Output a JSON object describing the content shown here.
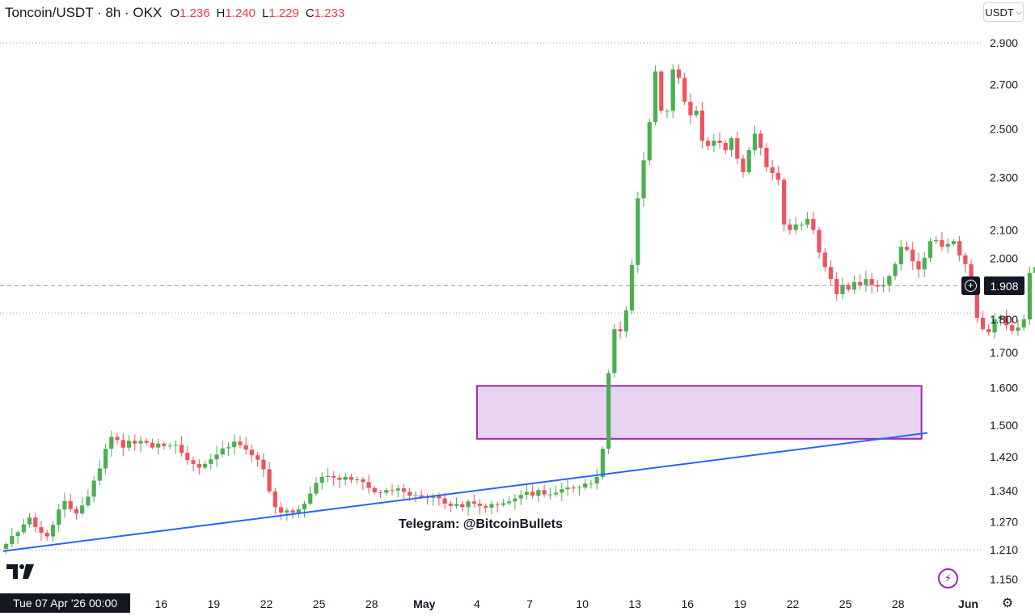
{
  "header": {
    "symbol": "Toncoin/USDT · 8h · OKX",
    "open_label": "O",
    "open": "1.236",
    "high_label": "H",
    "high": "1.240",
    "low_label": "L",
    "low": "1.229",
    "close_label": "C",
    "close": "1.233"
  },
  "currency_selector": {
    "label": "USDT",
    "icon": "chevron-down-icon"
  },
  "crosshair": {
    "date_label": "Tue 07 Apr '26   00:00",
    "price_label": "1.908",
    "price": 1.908
  },
  "watermark": {
    "text": "Telegram: @BitcoinBullets"
  },
  "colors": {
    "up": "#4caf50",
    "down": "#f0525f",
    "trendline": "#2962ff",
    "zone_fill": "#e8d4f0",
    "zone_border": "#9c27b0",
    "background": "#ffffff"
  },
  "icons": {
    "logo": "tradingview-logo-icon",
    "add": "plus-circle-icon",
    "flash": "flash-icon",
    "settings": "gear-icon"
  },
  "chart_data": {
    "type": "candlestick",
    "title": "Toncoin/USDT · 8h · OKX",
    "y_scale": "log",
    "y_ticks": [
      1.15,
      1.21,
      1.27,
      1.34,
      1.42,
      1.5,
      1.6,
      1.7,
      1.8,
      1.908,
      2.0,
      2.1,
      2.3,
      2.5,
      2.7,
      2.9
    ],
    "y_tick_labels": [
      "1.150",
      "1.210",
      "1.270",
      "1.340",
      "1.420",
      "1.500",
      "1.600",
      "1.700",
      "1.800",
      "1.908",
      "2.000",
      "2.100",
      "2.300",
      "2.500",
      "2.700",
      "2.900"
    ],
    "x_tick_labels": [
      "16",
      "19",
      "22",
      "25",
      "28",
      "May",
      "4",
      "7",
      "10",
      "13",
      "16",
      "19",
      "22",
      "25",
      "28",
      "Jun"
    ],
    "x_tick_dates": [
      "2026-04-16",
      "2026-04-19",
      "2026-04-22",
      "2026-04-25",
      "2026-04-28",
      "2026-05-01",
      "2026-05-04",
      "2026-05-07",
      "2026-05-10",
      "2026-05-13",
      "2026-05-16",
      "2026-05-19",
      "2026-05-22",
      "2026-05-25",
      "2026-05-28",
      "2026-06-01"
    ],
    "x_range": [
      "2026-04-07T00:00",
      "2026-06-01T12:00"
    ],
    "horizontal_levels": [
      2.9,
      1.82,
      1.21
    ],
    "demand_zone": {
      "from": "2026-05-04T00:00",
      "to": "2026-05-29T08:00",
      "low": 1.465,
      "high": 1.605
    },
    "trendline": {
      "x1": "2026-04-07T00:00",
      "y1": 1.207,
      "x2": "2026-05-29T16:00",
      "y2": 1.48
    },
    "closes": [
      1.222,
      1.239,
      1.247,
      1.264,
      1.279,
      1.258,
      1.246,
      1.238,
      1.263,
      1.297,
      1.316,
      1.298,
      1.288,
      1.306,
      1.326,
      1.363,
      1.392,
      1.44,
      1.47,
      1.462,
      1.443,
      1.46,
      1.453,
      1.46,
      1.455,
      1.443,
      1.453,
      1.447,
      1.448,
      1.45,
      1.43,
      1.412,
      1.403,
      1.394,
      1.403,
      1.414,
      1.426,
      1.441,
      1.444,
      1.458,
      1.449,
      1.438,
      1.424,
      1.413,
      1.39,
      1.338,
      1.302,
      1.29,
      1.295,
      1.29,
      1.297,
      1.31,
      1.333,
      1.358,
      1.372,
      1.374,
      1.37,
      1.365,
      1.372,
      1.365,
      1.366,
      1.36,
      1.346,
      1.336,
      1.335,
      1.341,
      1.34,
      1.345,
      1.337,
      1.328,
      1.329,
      1.325,
      1.323,
      1.329,
      1.322,
      1.31,
      1.305,
      1.309,
      1.302,
      1.315,
      1.31,
      1.305,
      1.301,
      1.309,
      1.307,
      1.311,
      1.315,
      1.322,
      1.33,
      1.337,
      1.328,
      1.341,
      1.331,
      1.331,
      1.335,
      1.343,
      1.347,
      1.345,
      1.347,
      1.356,
      1.356,
      1.372,
      1.44,
      1.641,
      1.77,
      1.763,
      1.828,
      1.977,
      2.218,
      2.368,
      2.53,
      2.76,
      2.58,
      2.58,
      2.77,
      2.73,
      2.62,
      2.56,
      2.58,
      2.45,
      2.428,
      2.45,
      2.44,
      2.41,
      2.46,
      2.375,
      2.32,
      2.41,
      2.48,
      2.42,
      2.34,
      2.317,
      2.29,
      2.12,
      2.1,
      2.12,
      2.12,
      2.14,
      2.1,
      2.02,
      1.97,
      1.93,
      1.88,
      1.91,
      1.895,
      1.92,
      1.91,
      1.93,
      1.91,
      1.905,
      1.91,
      1.94,
      1.98,
      2.04,
      2.03,
      1.99,
      1.962,
      2.002,
      2.06,
      2.064,
      2.04,
      2.05,
      2.06,
      2.01,
      1.98,
      1.91,
      1.805,
      1.77,
      1.76,
      1.8,
      1.81,
      1.782,
      1.765,
      1.775,
      1.8,
      1.95,
      1.97,
      1.915,
      1.898,
      1.938,
      1.91,
      1.902,
      1.895,
      1.858,
      1.815,
      1.794,
      1.776,
      1.784,
      1.788,
      1.774,
      1.774,
      1.763,
      1.761,
      1.786,
      1.812,
      1.854,
      1.905
    ]
  }
}
